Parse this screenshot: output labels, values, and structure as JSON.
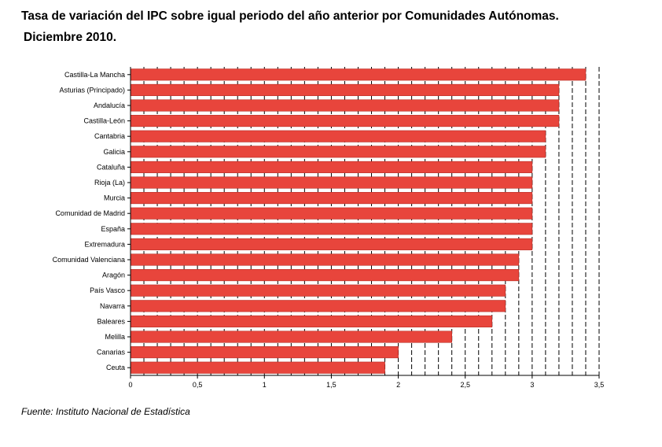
{
  "chart_data": {
    "type": "bar",
    "orientation": "horizontal",
    "title_line1": "Tasa de variación del IPC sobre igual periodo del año anterior por Comunidades Autónomas.",
    "title_line2": "Diciembre 2010.",
    "categories": [
      "Castilla-La Mancha",
      "Asturias (Principado)",
      "Andalucía",
      "Castilla-León",
      "Cantabria",
      "Galicia",
      "Cataluña",
      "Rioja (La)",
      "Murcia",
      "Comunidad de Madrid",
      "España",
      "Extremadura",
      "Comunidad Valenciana",
      "Aragón",
      "País Vasco",
      "Navarra",
      "Baleares",
      "Melilla",
      "Canarias",
      "Ceuta"
    ],
    "values": [
      3.4,
      3.2,
      3.2,
      3.2,
      3.1,
      3.1,
      3.0,
      3.0,
      3.0,
      3.0,
      3.0,
      3.0,
      2.9,
      2.9,
      2.8,
      2.8,
      2.7,
      2.4,
      2.0,
      1.9
    ],
    "xlim": [
      0,
      3.5
    ],
    "xticks": [
      "0",
      "0,5",
      "1",
      "1,5",
      "2",
      "2,5",
      "3",
      "3,5"
    ],
    "xtick_values": [
      0,
      0.5,
      1,
      1.5,
      2,
      2.5,
      3,
      3.5
    ],
    "gridlines": "vertical dashed every 0.1",
    "bar_color": "#e8453c",
    "bar_edge_color": "#b52a22",
    "xlabel": "",
    "ylabel": ""
  },
  "source": "Fuente: Instituto Nacional de Estadística"
}
